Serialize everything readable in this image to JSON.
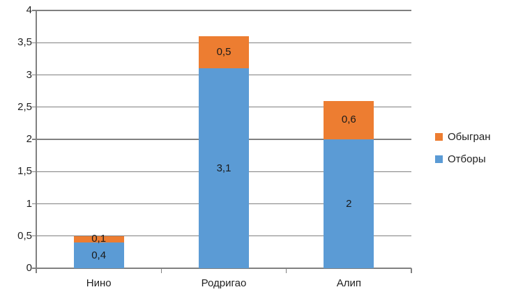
{
  "chart_data": {
    "type": "bar",
    "subtype": "stacked-vertical",
    "title": "",
    "xlabel": "",
    "ylabel": "",
    "categories": [
      "Нино",
      "Родригао",
      "Алип"
    ],
    "series": [
      {
        "name": "Отборы",
        "color": "#5B9BD5",
        "values": [
          0.4,
          3.1,
          2
        ],
        "labels": [
          "0,4",
          "3,1",
          "2"
        ]
      },
      {
        "name": "Обыгран",
        "color": "#ED7D31",
        "values": [
          0.1,
          0.5,
          0.6
        ],
        "labels": [
          "0,1",
          "0,5",
          "0,6"
        ]
      }
    ],
    "totals": [
      0.5,
      3.6,
      2.6
    ],
    "y_axis": {
      "min": 0,
      "max": 4,
      "step": 0.5,
      "tick_labels": [
        "0",
        "0,5",
        "1",
        "1,5",
        "2",
        "2,5",
        "3",
        "3,5",
        "4"
      ]
    },
    "grid": true,
    "legend_position": "right",
    "legend": [
      {
        "label": "Обыгран",
        "color": "#ED7D31"
      },
      {
        "label": "Отборы",
        "color": "#5B9BD5"
      }
    ],
    "colors": {
      "gridline": "#808080",
      "axis": "#808080",
      "text": "#1F1F1F"
    }
  }
}
